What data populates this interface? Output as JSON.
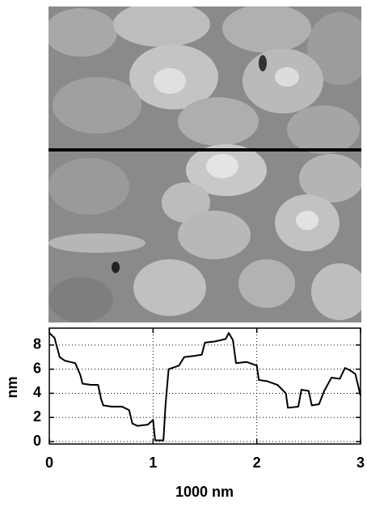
{
  "chart_data": {
    "type": "line",
    "xlabel": "1000 nm",
    "ylabel": "nm",
    "x": [
      0,
      0.05,
      0.1,
      0.15,
      0.2,
      0.25,
      0.3,
      0.32,
      0.4,
      0.47,
      0.5,
      0.52,
      0.6,
      0.7,
      0.77,
      0.8,
      0.85,
      0.95,
      1.0,
      1.02,
      1.1,
      1.12,
      1.15,
      1.25,
      1.3,
      1.4,
      1.47,
      1.5,
      1.6,
      1.7,
      1.73,
      1.77,
      1.8,
      1.9,
      2.0,
      2.02,
      2.1,
      2.2,
      2.28,
      2.3,
      2.4,
      2.43,
      2.5,
      2.53,
      2.6,
      2.65,
      2.72,
      2.8,
      2.85,
      2.9,
      2.95,
      3.0
    ],
    "series": [
      {
        "color": "#000000",
        "values": [
          9.0,
          8.6,
          7.0,
          6.7,
          6.6,
          6.5,
          5.5,
          4.8,
          4.7,
          4.7,
          3.5,
          3.0,
          2.9,
          2.9,
          2.6,
          1.5,
          1.3,
          1.4,
          1.8,
          0.1,
          0.1,
          3.0,
          6.0,
          6.3,
          7.0,
          7.1,
          7.2,
          8.2,
          8.3,
          8.5,
          9.0,
          8.4,
          6.5,
          6.6,
          6.3,
          5.1,
          5.0,
          4.7,
          4.0,
          2.8,
          2.9,
          4.3,
          4.2,
          3.0,
          3.1,
          4.2,
          5.3,
          5.2,
          6.1,
          5.9,
          5.6,
          3.8
        ]
      }
    ],
    "xlim": [
      0,
      3
    ],
    "ylim": [
      -0.2,
      9.4
    ],
    "xticks": [
      0,
      1,
      2,
      3
    ],
    "yticks": [
      0,
      2,
      4,
      6,
      8
    ],
    "grid": true
  }
}
